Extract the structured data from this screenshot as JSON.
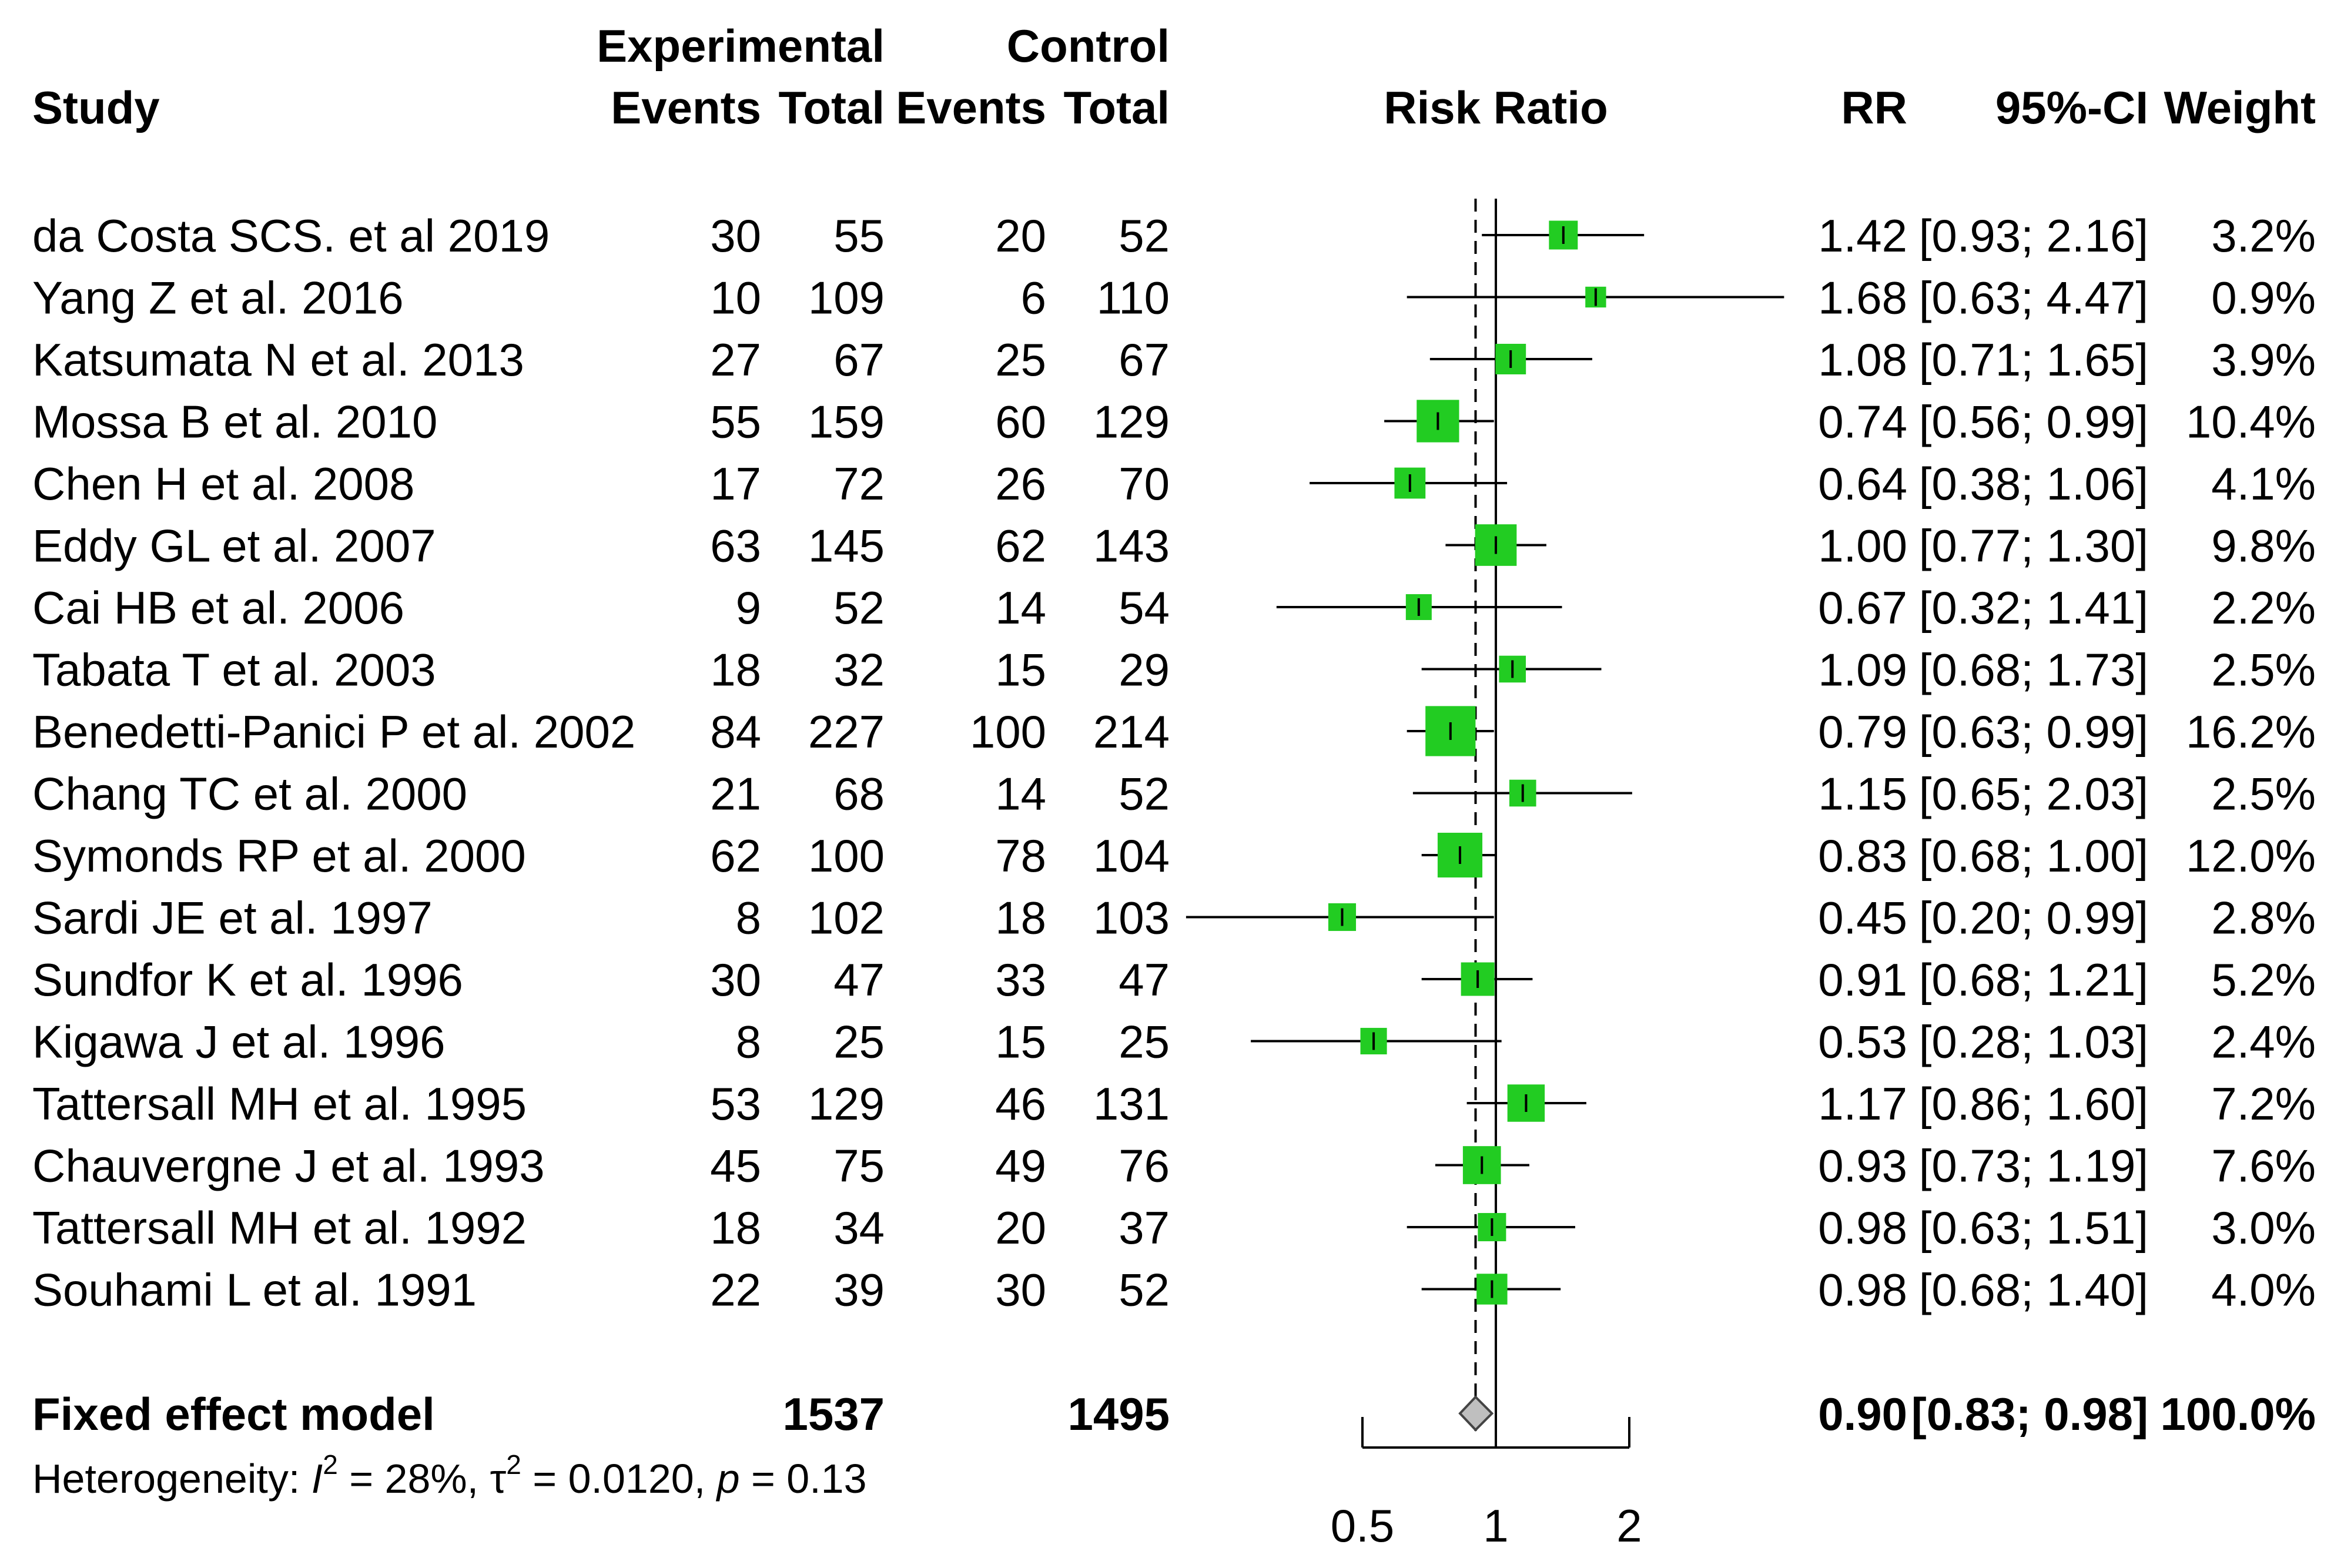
{
  "chart_data": {
    "type": "forest",
    "title": "",
    "headers": {
      "study": "Study",
      "experimental": "Experimental",
      "control": "Control",
      "events": "Events",
      "total": "Total",
      "risk_ratio": "Risk Ratio",
      "rr": "RR",
      "ci": "95%-CI",
      "weight": "Weight"
    },
    "studies": [
      {
        "study": "da Costa SCS. et al 2019",
        "exp_events": "30",
        "exp_total": "55",
        "ctrl_events": "20",
        "ctrl_total": "52",
        "rr": 1.42,
        "lo": 0.93,
        "hi": 2.16,
        "rr_text": "1.42",
        "ci_text": "[0.93; 2.16]",
        "weight_text": "3.2%",
        "weight": 3.2
      },
      {
        "study": "Yang Z et al. 2016",
        "exp_events": "10",
        "exp_total": "109",
        "ctrl_events": "6",
        "ctrl_total": "110",
        "rr": 1.68,
        "lo": 0.63,
        "hi": 4.47,
        "rr_text": "1.68",
        "ci_text": "[0.63; 4.47]",
        "weight_text": "0.9%",
        "weight": 0.9
      },
      {
        "study": "Katsumata N et al. 2013",
        "exp_events": "27",
        "exp_total": "67",
        "ctrl_events": "25",
        "ctrl_total": "67",
        "rr": 1.08,
        "lo": 0.71,
        "hi": 1.65,
        "rr_text": "1.08",
        "ci_text": "[0.71; 1.65]",
        "weight_text": "3.9%",
        "weight": 3.9
      },
      {
        "study": "Mossa B et al. 2010",
        "exp_events": "55",
        "exp_total": "159",
        "ctrl_events": "60",
        "ctrl_total": "129",
        "rr": 0.74,
        "lo": 0.56,
        "hi": 0.99,
        "rr_text": "0.74",
        "ci_text": "[0.56; 0.99]",
        "weight_text": "10.4%",
        "weight": 10.4
      },
      {
        "study": "Chen H et al. 2008",
        "exp_events": "17",
        "exp_total": "72",
        "ctrl_events": "26",
        "ctrl_total": "70",
        "rr": 0.64,
        "lo": 0.38,
        "hi": 1.06,
        "rr_text": "0.64",
        "ci_text": "[0.38; 1.06]",
        "weight_text": "4.1%",
        "weight": 4.1
      },
      {
        "study": "Eddy GL et al. 2007",
        "exp_events": "63",
        "exp_total": "145",
        "ctrl_events": "62",
        "ctrl_total": "143",
        "rr": 1.0,
        "lo": 0.77,
        "hi": 1.3,
        "rr_text": "1.00",
        "ci_text": "[0.77; 1.30]",
        "weight_text": "9.8%",
        "weight": 9.8
      },
      {
        "study": "Cai HB et al. 2006",
        "exp_events": "9",
        "exp_total": "52",
        "ctrl_events": "14",
        "ctrl_total": "54",
        "rr": 0.67,
        "lo": 0.32,
        "hi": 1.41,
        "rr_text": "0.67",
        "ci_text": "[0.32; 1.41]",
        "weight_text": "2.2%",
        "weight": 2.2
      },
      {
        "study": "Tabata T et al. 2003",
        "exp_events": "18",
        "exp_total": "32",
        "ctrl_events": "15",
        "ctrl_total": "29",
        "rr": 1.09,
        "lo": 0.68,
        "hi": 1.73,
        "rr_text": "1.09",
        "ci_text": "[0.68; 1.73]",
        "weight_text": "2.5%",
        "weight": 2.5
      },
      {
        "study": "Benedetti-Panici P et al. 2002",
        "exp_events": "84",
        "exp_total": "227",
        "ctrl_events": "100",
        "ctrl_total": "214",
        "rr": 0.79,
        "lo": 0.63,
        "hi": 0.99,
        "rr_text": "0.79",
        "ci_text": "[0.63; 0.99]",
        "weight_text": "16.2%",
        "weight": 16.2
      },
      {
        "study": "Chang TC et al. 2000",
        "exp_events": "21",
        "exp_total": "68",
        "ctrl_events": "14",
        "ctrl_total": "52",
        "rr": 1.15,
        "lo": 0.65,
        "hi": 2.03,
        "rr_text": "1.15",
        "ci_text": "[0.65; 2.03]",
        "weight_text": "2.5%",
        "weight": 2.5
      },
      {
        "study": "Symonds RP et al. 2000",
        "exp_events": "62",
        "exp_total": "100",
        "ctrl_events": "78",
        "ctrl_total": "104",
        "rr": 0.83,
        "lo": 0.68,
        "hi": 1.0,
        "rr_text": "0.83",
        "ci_text": "[0.68; 1.00]",
        "weight_text": "12.0%",
        "weight": 12.0
      },
      {
        "study": "Sardi JE et al. 1997",
        "exp_events": "8",
        "exp_total": "102",
        "ctrl_events": "18",
        "ctrl_total": "103",
        "rr": 0.45,
        "lo": 0.2,
        "hi": 0.99,
        "rr_text": "0.45",
        "ci_text": "[0.20; 0.99]",
        "weight_text": "2.8%",
        "weight": 2.8
      },
      {
        "study": "Sundfor K et al. 1996",
        "exp_events": "30",
        "exp_total": "47",
        "ctrl_events": "33",
        "ctrl_total": "47",
        "rr": 0.91,
        "lo": 0.68,
        "hi": 1.21,
        "rr_text": "0.91",
        "ci_text": "[0.68; 1.21]",
        "weight_text": "5.2%",
        "weight": 5.2
      },
      {
        "study": "Kigawa J et al. 1996",
        "exp_events": "8",
        "exp_total": "25",
        "ctrl_events": "15",
        "ctrl_total": "25",
        "rr": 0.53,
        "lo": 0.28,
        "hi": 1.03,
        "rr_text": "0.53",
        "ci_text": "[0.28; 1.03]",
        "weight_text": "2.4%",
        "weight": 2.4
      },
      {
        "study": "Tattersall MH et al. 1995",
        "exp_events": "53",
        "exp_total": "129",
        "ctrl_events": "46",
        "ctrl_total": "131",
        "rr": 1.17,
        "lo": 0.86,
        "hi": 1.6,
        "rr_text": "1.17",
        "ci_text": "[0.86; 1.60]",
        "weight_text": "7.2%",
        "weight": 7.2
      },
      {
        "study": "Chauvergne J et al. 1993",
        "exp_events": "45",
        "exp_total": "75",
        "ctrl_events": "49",
        "ctrl_total": "76",
        "rr": 0.93,
        "lo": 0.73,
        "hi": 1.19,
        "rr_text": "0.93",
        "ci_text": "[0.73; 1.19]",
        "weight_text": "7.6%",
        "weight": 7.6
      },
      {
        "study": "Tattersall MH et al. 1992",
        "exp_events": "18",
        "exp_total": "34",
        "ctrl_events": "20",
        "ctrl_total": "37",
        "rr": 0.98,
        "lo": 0.63,
        "hi": 1.51,
        "rr_text": "0.98",
        "ci_text": "[0.63; 1.51]",
        "weight_text": "3.0%",
        "weight": 3.0
      },
      {
        "study": "Souhami L et al. 1991",
        "exp_events": "22",
        "exp_total": "39",
        "ctrl_events": "30",
        "ctrl_total": "52",
        "rr": 0.98,
        "lo": 0.68,
        "hi": 1.4,
        "rr_text": "0.98",
        "ci_text": "[0.68; 1.40]",
        "weight_text": "4.0%",
        "weight": 4.0
      }
    ],
    "pooled": {
      "label": "Fixed effect model",
      "exp_total": "1537",
      "ctrl_total": "1495",
      "rr": 0.9,
      "lo": 0.83,
      "hi": 0.98,
      "rr_text": "0.90",
      "ci_text": "[0.83; 0.98]",
      "weight_text": "100.0%"
    },
    "heterogeneity": {
      "prefix": "Heterogeneity: ",
      "i2_symbol": "I",
      "i2_exp": "2",
      "i2_value": " = 28%, ",
      "tau_symbol": "τ",
      "tau_exp": "2",
      "tau_value": " = 0.0120, ",
      "p_symbol": "p",
      "p_value": " = 0.13"
    },
    "x_axis": {
      "scale": "log",
      "ticks": [
        0.5,
        1,
        2
      ],
      "tick_labels": [
        "0.5",
        "1",
        "2"
      ],
      "range": [
        0.2,
        4.47
      ],
      "reference_line": 1,
      "pooled_line": 0.9
    },
    "colors": {
      "square": "#22cc22",
      "line": "#000000",
      "diamond": "#bfbfbf"
    }
  }
}
